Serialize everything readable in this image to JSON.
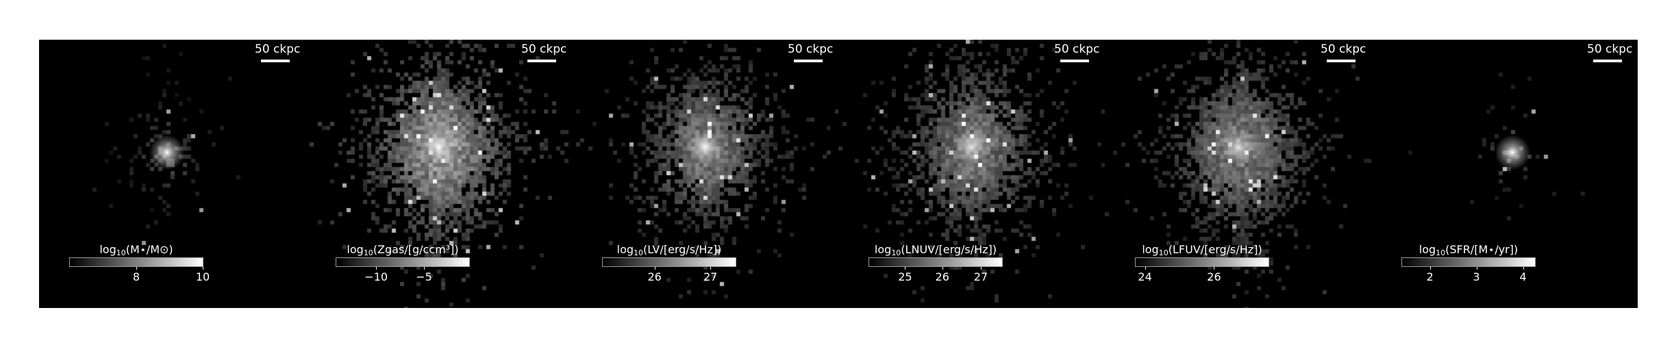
{
  "panels": [
    {
      "scale_label": "50 ckpc",
      "colorbar": {
        "label_prefix": "log",
        "label_sub": "10",
        "label_body": "(M⋆/M⊙)",
        "ticks": [
          "8",
          "10"
        ],
        "tick_fractions": [
          0.5,
          1.0
        ]
      }
    },
    {
      "scale_label": "50 ckpc",
      "colorbar": {
        "label_prefix": "log",
        "label_sub": "10",
        "label_body": "(Zgas/[g/ccm³])",
        "ticks": [
          "−10",
          "−5"
        ],
        "tick_fractions": [
          0.3,
          0.66
        ]
      }
    },
    {
      "scale_label": "50 ckpc",
      "colorbar": {
        "label_prefix": "log",
        "label_sub": "10",
        "label_body": "(LV/[erg/s/Hz])",
        "ticks": [
          "26",
          "27"
        ],
        "tick_fractions": [
          0.39,
          0.81
        ]
      }
    },
    {
      "scale_label": "50 ckpc",
      "colorbar": {
        "label_prefix": "log",
        "label_sub": "10",
        "label_body": "(LNUV/[erg/s/Hz])",
        "ticks": [
          "25",
          "26",
          "27"
        ],
        "tick_fractions": [
          0.27,
          0.55,
          0.84
        ]
      }
    },
    {
      "scale_label": "50 ckpc",
      "colorbar": {
        "label_prefix": "log",
        "label_sub": "10",
        "label_body": "(LFUV/[erg/s/Hz])",
        "ticks": [
          "24",
          "26"
        ],
        "tick_fractions": [
          0.07,
          0.59
        ]
      }
    },
    {
      "scale_label": "50 ckpc",
      "colorbar": {
        "label_prefix": "log",
        "label_sub": "10",
        "label_body": "(SFR/[M⋆/yr])",
        "ticks": [
          "2",
          "3",
          "4"
        ],
        "tick_fractions": [
          0.21,
          0.56,
          0.91
        ]
      }
    }
  ],
  "maps": [
    {
      "spread": 0.55,
      "density": 0.1,
      "brightness": 0.35,
      "core": 1.0,
      "core_offset": [
        -0.02,
        -0.08
      ]
    },
    {
      "spread": 0.9,
      "density": 0.55,
      "brightness": 0.75,
      "core": 1.0,
      "core_offset": [
        0.0,
        -0.1
      ]
    },
    {
      "spread": 0.85,
      "density": 0.45,
      "brightness": 0.6,
      "core": 0.95,
      "core_offset": [
        0.0,
        -0.1
      ]
    },
    {
      "spread": 0.88,
      "density": 0.48,
      "brightness": 0.6,
      "core": 0.85,
      "core_offset": [
        0.0,
        -0.1
      ]
    },
    {
      "spread": 0.88,
      "density": 0.5,
      "brightness": 0.62,
      "core": 0.8,
      "core_offset": [
        0.0,
        -0.1
      ]
    },
    {
      "spread": 0.45,
      "density": 0.08,
      "brightness": 0.4,
      "core": 1.0,
      "core_offset": [
        0.03,
        -0.08
      ]
    }
  ]
}
